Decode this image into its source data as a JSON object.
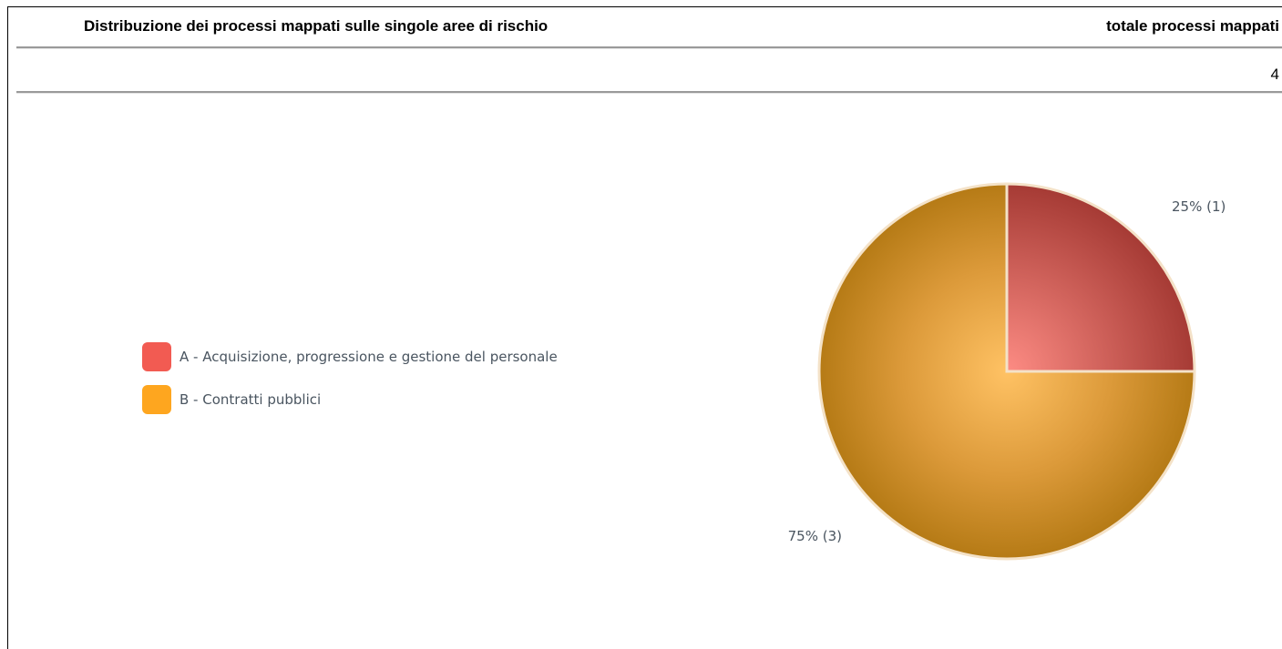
{
  "header": {
    "title": "Distribuzione dei processi mappati sulle singole aree di rischio",
    "total_label": "totale processi mappati",
    "total_value": "4"
  },
  "chart_data": {
    "type": "pie",
    "categories": [
      "A - Acquisizione, progressione e gestione del personale",
      "B - Contratti pubblici"
    ],
    "values": [
      1,
      3
    ],
    "percentages": [
      25,
      75
    ],
    "data_labels": [
      "25% (1)",
      "75% (3)"
    ],
    "colors": [
      "#f25b52",
      "#fea61f"
    ],
    "legend_position": "left"
  }
}
